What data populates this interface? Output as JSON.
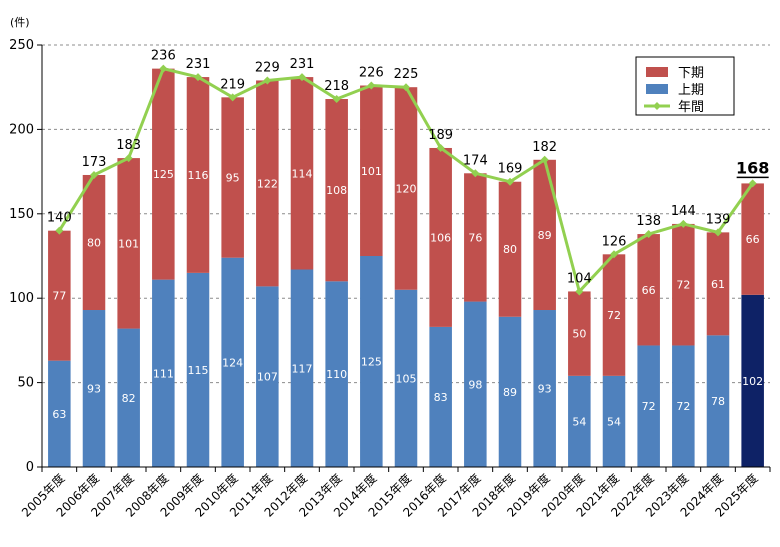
{
  "chart_data": {
    "type": "bar",
    "stacked": true,
    "unit_label": "(件)",
    "ylim": [
      0,
      250
    ],
    "yticks": [
      0,
      50,
      100,
      150,
      200,
      250
    ],
    "grid": "horizontal-dashed",
    "legend_position": "top-right",
    "categories": [
      "2005年度",
      "2006年度",
      "2007年度",
      "2008年度",
      "2009年度",
      "2010年度",
      "2011年度",
      "2012年度",
      "2013年度",
      "2014年度",
      "2015年度",
      "2016年度",
      "2017年度",
      "2018年度",
      "2019年度",
      "2020年度",
      "2021年度",
      "2022年度",
      "2023年度",
      "2024年度",
      "2025年度"
    ],
    "series": [
      {
        "name": "上期",
        "color": "#4f81bd",
        "highlight_color": "#0e2266",
        "values": [
          63,
          93,
          82,
          111,
          115,
          124,
          107,
          117,
          110,
          125,
          105,
          83,
          98,
          89,
          93,
          54,
          54,
          72,
          72,
          78,
          102
        ]
      },
      {
        "name": "下期",
        "color": "#c0504d",
        "values": [
          77,
          80,
          101,
          125,
          116,
          95,
          122,
          114,
          108,
          101,
          120,
          106,
          76,
          80,
          89,
          50,
          72,
          66,
          72,
          61,
          66
        ]
      },
      {
        "name": "年間",
        "type": "line",
        "color": "#92d050",
        "values": [
          140,
          173,
          183,
          236,
          231,
          219,
          229,
          231,
          218,
          226,
          225,
          189,
          174,
          169,
          182,
          104,
          126,
          138,
          144,
          139,
          168
        ]
      }
    ],
    "legend": [
      "下期",
      "上期",
      "年間"
    ],
    "highlight_category": "2025年度"
  }
}
